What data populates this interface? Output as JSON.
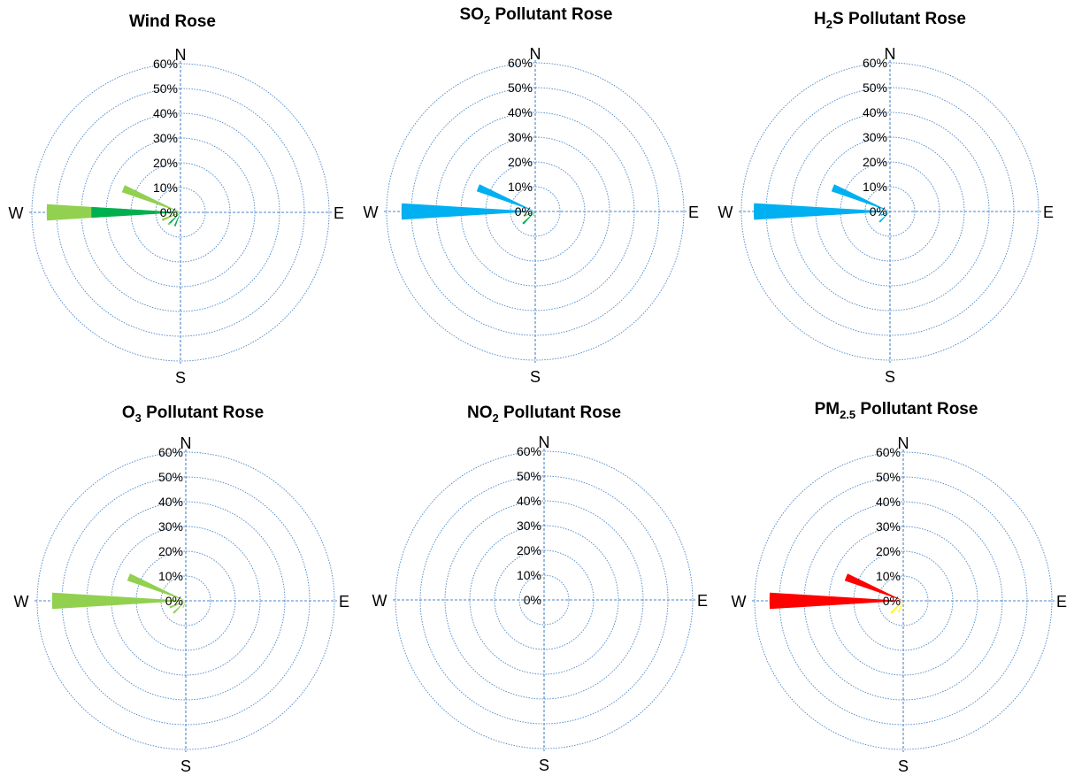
{
  "chart_data": [
    {
      "type": "polar-bar",
      "title": "Wind Rose",
      "title_sub": "",
      "title_after": "",
      "directions": [
        "N",
        "E",
        "S",
        "W"
      ],
      "rlabels": [
        "0%",
        "10%",
        "20%",
        "30%",
        "40%",
        "50%",
        "60%"
      ],
      "rmax": 60,
      "grid": true,
      "series": [
        {
          "color": "#92d050",
          "bars": [
            {
              "angle": 270,
              "value": 54
            },
            {
              "angle": 292.5,
              "value": 25
            },
            {
              "angle": 247.5,
              "value": 8
            },
            {
              "angle": 225,
              "value": 7
            }
          ]
        },
        {
          "color": "#00b050",
          "bars": [
            {
              "angle": 270,
              "value": 36
            },
            {
              "angle": 292.5,
              "value": 3
            },
            {
              "angle": 225,
              "value": 6
            },
            {
              "angle": 202.5,
              "value": 6
            }
          ]
        }
      ]
    },
    {
      "type": "polar-bar",
      "title": "SO",
      "title_sub": "2",
      "title_after": "  Pollutant Rose",
      "directions": [
        "N",
        "E",
        "S",
        "W"
      ],
      "rlabels": [
        "0%",
        "10%",
        "20%",
        "30%",
        "40%",
        "50%",
        "60%"
      ],
      "rmax": 60,
      "grid": true,
      "series": [
        {
          "color": "#00b0f0",
          "bars": [
            {
              "angle": 270,
              "value": 54
            },
            {
              "angle": 292.5,
              "value": 25
            }
          ]
        },
        {
          "color": "#92d050",
          "bars": [
            {
              "angle": 247.5,
              "value": 5
            }
          ]
        },
        {
          "color": "#00b050",
          "bars": [
            {
              "angle": 225,
              "value": 7
            },
            {
              "angle": 247.5,
              "value": 3
            },
            {
              "angle": 202.5,
              "value": 2
            }
          ]
        }
      ]
    },
    {
      "type": "polar-bar",
      "title": "H",
      "title_sub": "2",
      "title_after": "S Pollutant Rose",
      "directions": [
        "N",
        "E",
        "S",
        "W"
      ],
      "rlabels": [
        "0%",
        "10%",
        "20%",
        "30%",
        "40%",
        "50%",
        "60%"
      ],
      "rmax": 60,
      "grid": true,
      "series": [
        {
          "color": "#00b0f0",
          "bars": [
            {
              "angle": 270,
              "value": 55
            },
            {
              "angle": 292.5,
              "value": 25
            },
            {
              "angle": 225,
              "value": 6
            },
            {
              "angle": 247.5,
              "value": 4
            }
          ]
        }
      ]
    },
    {
      "type": "polar-bar",
      "title": "O",
      "title_sub": "3",
      "title_after": " Pollutant Rose",
      "directions": [
        "N",
        "E",
        "S",
        "W"
      ],
      "rlabels": [
        "0%",
        "10%",
        "20%",
        "30%",
        "40%",
        "50%",
        "60%"
      ],
      "rmax": 60,
      "grid": true,
      "series": [
        {
          "color": "#92d050",
          "bars": [
            {
              "angle": 270,
              "value": 54
            },
            {
              "angle": 292.5,
              "value": 25
            },
            {
              "angle": 247.5,
              "value": 7
            },
            {
              "angle": 225,
              "value": 7
            },
            {
              "angle": 202.5,
              "value": 3
            }
          ]
        }
      ]
    },
    {
      "type": "polar-bar",
      "title": "NO",
      "title_sub": "2",
      "title_after": " Pollutant Rose",
      "directions": [
        "N",
        "E",
        "S",
        "W"
      ],
      "rlabels": [
        "0%",
        "10%",
        "20%",
        "30%",
        "40%",
        "50%",
        "60%"
      ],
      "rmax": 60,
      "grid": true,
      "series": []
    },
    {
      "type": "polar-bar",
      "title": "PM",
      "title_sub": "2.5",
      "title_after": " Pollutant Rose",
      "directions": [
        "N",
        "E",
        "S",
        "W"
      ],
      "rlabels": [
        "0%",
        "10%",
        "20%",
        "30%",
        "40%",
        "50%",
        "60%"
      ],
      "rmax": 60,
      "grid": true,
      "series": [
        {
          "color": "#ff0000",
          "bars": [
            {
              "angle": 270,
              "value": 54
            },
            {
              "angle": 292.5,
              "value": 25
            }
          ]
        },
        {
          "color": "#ffc000",
          "bars": [
            {
              "angle": 225,
              "value": 5
            }
          ]
        },
        {
          "color": "#ffff00",
          "bars": [
            {
              "angle": 225,
              "value": 7
            },
            {
              "angle": 202.5,
              "value": 5
            }
          ]
        }
      ]
    }
  ]
}
